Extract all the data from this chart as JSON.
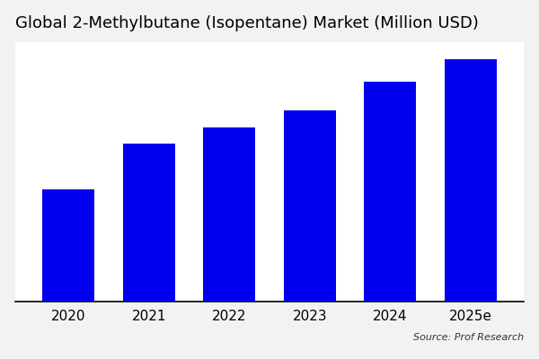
{
  "title": "Global 2-Methylbutane (Isopentane) Market (Million USD)",
  "categories": [
    "2020",
    "2021",
    "2022",
    "2023",
    "2024",
    "2025e"
  ],
  "values": [
    100,
    140,
    155,
    170,
    195,
    215
  ],
  "bar_color": "#0000EE",
  "background_color": "#f2f2f2",
  "plot_bg_color": "#ffffff",
  "source_text": "Source: Prof Research",
  "title_fontsize": 13,
  "tick_fontsize": 11,
  "bar_width": 0.65,
  "ylim": [
    0,
    230
  ]
}
